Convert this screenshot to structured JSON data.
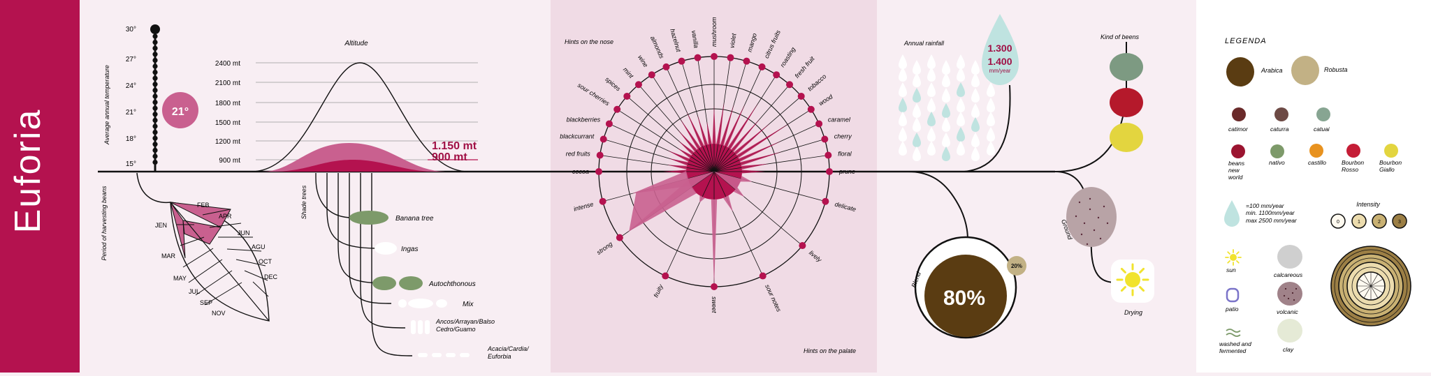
{
  "brand": "Euforia",
  "temperature": {
    "axis_title": "Average annual temperature",
    "ticks": [
      "30°",
      "27°",
      "24°",
      "21°",
      "18°",
      "15°"
    ],
    "value_label": "21°"
  },
  "harvest": {
    "axis_title": "Period of harvesting beans",
    "months": [
      "JEN",
      "FEB",
      "MAR",
      "APR",
      "MAY",
      "JUN",
      "JUL",
      "AGU",
      "SEP",
      "OCT",
      "NOV",
      "DEC"
    ],
    "highlighted": [
      "JEN",
      "FEB",
      "APR"
    ]
  },
  "altitude": {
    "title": "Altitude",
    "ticks": [
      "2400 mt",
      "2100 mt",
      "1800 mt",
      "1500 mt",
      "1200 mt",
      "900 mt"
    ],
    "value_high": "1.150 mt",
    "value_low": "900 mt"
  },
  "shade": {
    "axis_title": "Shade trees",
    "items": [
      "Banana tree",
      "Ingas",
      "Autochthonous",
      "Mix",
      "Ancos/Arrayan/Balso Cedro/Guamo",
      "Acacia/Cardia/ Euforbia"
    ]
  },
  "aroma": {
    "nose_title": "Hints on the nose",
    "palate_title": "Hints on the palate",
    "nose_labels": [
      "cocoa",
      "red fruits",
      "blackcurrant",
      "blackberries",
      "sour cherries",
      "spices",
      "mint",
      "wine",
      "almonds",
      "hazelnut",
      "vanilla",
      "mushroom",
      "violet",
      "mango",
      "citrus fruits",
      "roasting",
      "fresh fruit",
      "tobacco",
      "wood",
      "caramel",
      "cherry",
      "floral",
      "prune"
    ],
    "nose_values": [
      0.3,
      0.25,
      0.25,
      0.3,
      0.2,
      0.25,
      0.35,
      0.45,
      0.5,
      0.4,
      0.3,
      0.5,
      0.55,
      0.55,
      0.6,
      0.7,
      0.55,
      0.6,
      0.8,
      0.6,
      0.55,
      0.35,
      0.3
    ],
    "palate_labels": [
      "delicate",
      "lively",
      "sour notes",
      "sweet",
      "fruity",
      "strong",
      "intense"
    ],
    "palate_values": [
      0.25,
      0.25,
      0.3,
      1.0,
      0.2,
      0.9,
      0.7
    ]
  },
  "rainfall": {
    "title": "Annual rainfall",
    "value_top": "1.300",
    "value_bottom": "1.400",
    "unit": "mm/year"
  },
  "beans": {
    "title": "Kind of beens",
    "colors": [
      "#7d9a82",
      "#b5192b",
      "#e3d53f"
    ]
  },
  "ground": {
    "label": "Ground"
  },
  "drying": {
    "label": "Drying"
  },
  "blend": {
    "label": "Blend",
    "main": "80%",
    "secondary": "20%"
  },
  "legend": {
    "title": "LEGENDA",
    "species": [
      {
        "label": "Arabica",
        "color": "#5a3c12"
      },
      {
        "label": "Robusta",
        "color": "#c2b185"
      }
    ],
    "varieties_row1": [
      {
        "label": "catimor",
        "color": "#6a2a2a"
      },
      {
        "label": "caturra",
        "color": "#6d4a45"
      },
      {
        "label": "catuai",
        "color": "#87a592"
      }
    ],
    "varieties_row2": [
      {
        "label": "beans new world",
        "color": "#9b1430"
      },
      {
        "label": "nativo",
        "color": "#7d9a6a"
      },
      {
        "label": "castillo",
        "color": "#e8921f"
      },
      {
        "label": "Bourbon Rosso",
        "color": "#c51d36"
      },
      {
        "label": "Bourbon Giallo",
        "color": "#e3d53f"
      }
    ],
    "rain_line1": "=100 mm/year",
    "rain_line2": "min. 1100mm/year",
    "rain_line3": "max 2500 mm/year",
    "intensity_title": "Intensity",
    "intensity_levels": [
      "0",
      "1",
      "2",
      "3"
    ],
    "drying_methods": [
      "sun",
      "patio",
      "washed and fermented"
    ],
    "soils": [
      "calcareous",
      "volcanic",
      "clay"
    ]
  }
}
